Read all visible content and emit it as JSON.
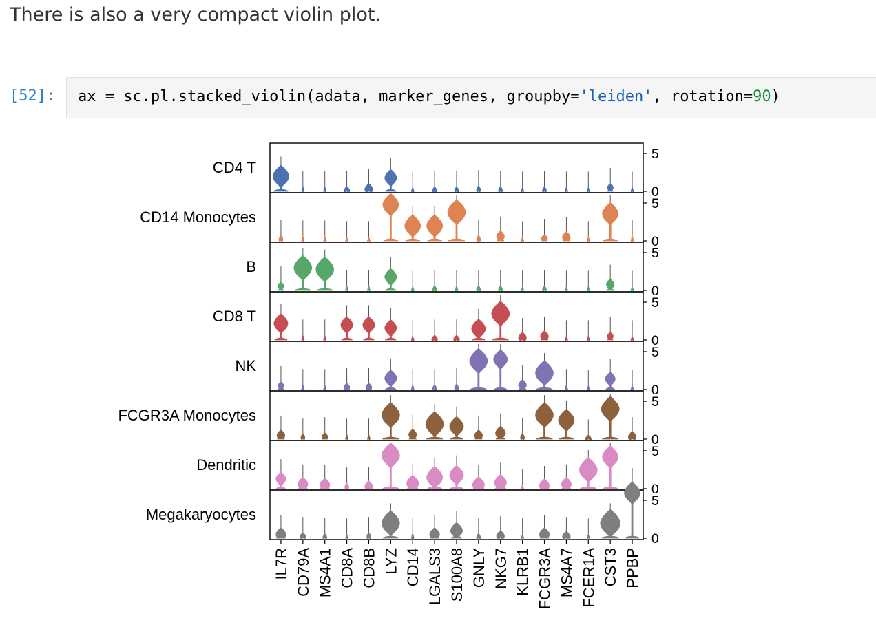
{
  "markdown": {
    "text": "There is also a very compact violin plot."
  },
  "cell": {
    "prompt": "[52]:",
    "code": {
      "part1": "ax = sc.pl.stacked_violin(adata, marker_genes, groupby=",
      "string_arg": "'leiden'",
      "part2": ", rotation=",
      "number_arg": "90",
      "part3": ")"
    }
  },
  "chart_data": {
    "type": "stacked_violin",
    "genes": [
      "IL7R",
      "CD79A",
      "MS4A1",
      "CD8A",
      "CD8B",
      "LYZ",
      "CD14",
      "LGALS3",
      "S100A8",
      "GNLY",
      "NKG7",
      "KLRB1",
      "FCGR3A",
      "MS4A7",
      "FCER1A",
      "CST3",
      "PPBP"
    ],
    "groups": [
      {
        "name": "CD4 T",
        "color": "#4c72b0",
        "medians": [
          2.0,
          0.1,
          0.1,
          0.1,
          0.3,
          1.8,
          0,
          0.1,
          0.1,
          0.2,
          0.1,
          0,
          0.1,
          0,
          0,
          0.5,
          0
        ],
        "widths": [
          0.8,
          0.1,
          0.1,
          0.3,
          0.4,
          0.6,
          0.1,
          0.2,
          0.2,
          0.2,
          0.2,
          0.1,
          0.2,
          0.1,
          0.1,
          0.3,
          0.1
        ]
      },
      {
        "name": "CD14 Monocytes",
        "color": "#dd8452",
        "medians": [
          0.2,
          0.1,
          0.1,
          0,
          0,
          4.8,
          2.0,
          2.0,
          3.8,
          0.2,
          0.6,
          0,
          0.3,
          0.5,
          0,
          3.6,
          0.1
        ],
        "widths": [
          0.2,
          0.1,
          0.1,
          0.1,
          0.1,
          0.8,
          0.8,
          0.8,
          0.9,
          0.2,
          0.4,
          0.1,
          0.3,
          0.4,
          0.1,
          0.8,
          0.1
        ]
      },
      {
        "name": "B",
        "color": "#55a868",
        "medians": [
          0.6,
          3.0,
          2.8,
          0.1,
          0.1,
          1.8,
          0,
          0.1,
          0.1,
          0.1,
          0.1,
          0,
          0.1,
          0,
          0,
          0.8,
          0
        ],
        "widths": [
          0.3,
          0.9,
          0.9,
          0.1,
          0.1,
          0.6,
          0.1,
          0.2,
          0.1,
          0.2,
          0.2,
          0.1,
          0.2,
          0.1,
          0.1,
          0.4,
          0.1
        ]
      },
      {
        "name": "CD8 T",
        "color": "#c44e52",
        "medians": [
          2.2,
          0.1,
          0.1,
          2.0,
          2.0,
          1.6,
          0,
          0.1,
          0.1,
          1.5,
          3.5,
          0.3,
          0.5,
          0,
          0,
          0.5,
          0
        ],
        "widths": [
          0.7,
          0.1,
          0.1,
          0.6,
          0.6,
          0.6,
          0.1,
          0.3,
          0.3,
          0.7,
          0.9,
          0.4,
          0.4,
          0.1,
          0.1,
          0.3,
          0.1
        ]
      },
      {
        "name": "NK",
        "color": "#8172b3",
        "medians": [
          0.5,
          0.1,
          0.1,
          0.3,
          0.3,
          1.5,
          0.1,
          0.1,
          0.2,
          3.8,
          4.0,
          0.6,
          2.2,
          0.1,
          0,
          1.4,
          0
        ],
        "widths": [
          0.3,
          0.1,
          0.1,
          0.3,
          0.3,
          0.6,
          0.1,
          0.2,
          0.2,
          0.9,
          0.7,
          0.4,
          0.9,
          0.1,
          0.1,
          0.5,
          0.1
        ]
      },
      {
        "name": "FCGR3A Monocytes",
        "color": "#8c613c",
        "medians": [
          0.5,
          0.2,
          0.3,
          0.1,
          0.1,
          3.2,
          0.6,
          2.0,
          1.7,
          0.5,
          0.8,
          0.2,
          3.2,
          2.5,
          0,
          4.0,
          0.3
        ],
        "widths": [
          0.4,
          0.2,
          0.3,
          0.1,
          0.1,
          0.9,
          0.4,
          0.9,
          0.7,
          0.4,
          0.5,
          0.2,
          0.9,
          0.8,
          0.3,
          0.9,
          0.4
        ]
      },
      {
        "name": "Dendritic",
        "color": "#da8bc3",
        "medians": [
          1.3,
          0.6,
          0.5,
          0.2,
          0.3,
          4.4,
          0.7,
          1.5,
          1.8,
          0.5,
          0.8,
          0,
          0.4,
          0.6,
          2.5,
          4.2,
          0.1
        ],
        "widths": [
          0.5,
          0.5,
          0.5,
          0.2,
          0.4,
          0.9,
          0.6,
          0.8,
          0.7,
          0.6,
          0.6,
          0.1,
          0.5,
          0.5,
          0.9,
          0.8,
          0.1
        ]
      },
      {
        "name": "Megakaryocytes",
        "color": "#7f7f7f",
        "medians": [
          0.5,
          0.2,
          0.1,
          0,
          0.2,
          2.0,
          0.1,
          0.5,
          1.0,
          0.1,
          0.3,
          0,
          0.5,
          0.2,
          0,
          2.0,
          6.0
        ],
        "widths": [
          0.5,
          0.3,
          0.2,
          0.1,
          0.2,
          0.9,
          0.1,
          0.5,
          0.6,
          0.2,
          0.4,
          0.1,
          0.5,
          0.4,
          0.1,
          1.0,
          0.8
        ]
      }
    ],
    "ylim": [
      0,
      6
    ],
    "yticks": [
      "0",
      "5"
    ],
    "xlabel": "",
    "ylabel": ""
  }
}
